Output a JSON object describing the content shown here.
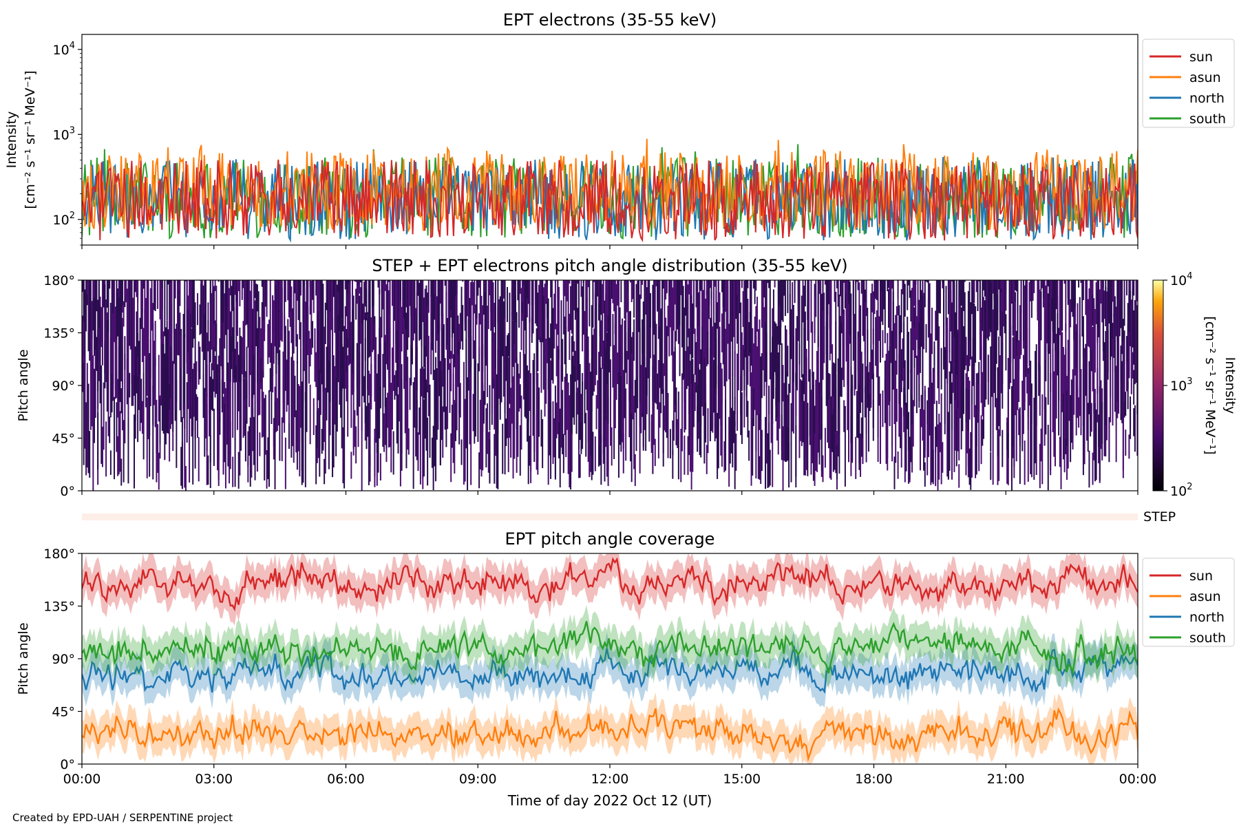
{
  "figure": {
    "credit": "Created by EPD-UAH / SERPENTINE project",
    "xlabel": "Time of day 2022 Oct 12 (UT)",
    "x_ticks": [
      "00:00",
      "03:00",
      "06:00",
      "09:00",
      "12:00",
      "15:00",
      "18:00",
      "21:00",
      "00:00"
    ],
    "step_label": "STEP"
  },
  "colors": {
    "sun": "#d62728",
    "asun": "#ff7f0e",
    "north": "#1f77b4",
    "south": "#2ca02c",
    "pad": "#3b0f6f"
  },
  "chart_data": [
    {
      "type": "line",
      "title": "EPT electrons (35-55 keV)",
      "ylabel_line1": "Intensity",
      "ylabel_line2": "[cm⁻² s⁻¹ sr⁻¹ MeV⁻¹]",
      "yscale": "log",
      "ylim": [
        50,
        15000
      ],
      "y_ticks": [
        {
          "label": "10",
          "exp": "2",
          "value": 100
        },
        {
          "label": "10",
          "exp": "3",
          "value": 1000
        },
        {
          "label": "10",
          "exp": "4",
          "value": 10000
        }
      ],
      "xlim_hours": [
        0,
        24
      ],
      "legend": "right outside",
      "series": [
        {
          "name": "sun",
          "color": "#d62728",
          "typical": 170,
          "max": 500
        },
        {
          "name": "asun",
          "color": "#ff7f0e",
          "typical": 220,
          "max": 900
        },
        {
          "name": "north",
          "color": "#1f77b4",
          "typical": 170,
          "max": 550
        },
        {
          "name": "south",
          "color": "#2ca02c",
          "typical": 180,
          "max": 800
        }
      ],
      "legend_order": [
        "sun",
        "asun",
        "north",
        "south"
      ]
    },
    {
      "type": "heatmap",
      "title": "STEP + EPT electrons pitch angle distribution (35-55 keV)",
      "ylabel": "Pitch angle",
      "ylim": [
        0,
        180
      ],
      "y_ticks": [
        "0°",
        "45°",
        "90°",
        "135°",
        "180°"
      ],
      "colorbar": {
        "label": "Intensity",
        "unit": "[cm⁻² s⁻¹ sr⁻¹ MeV⁻¹]",
        "scale": "log",
        "range": [
          100,
          10000
        ],
        "ticks": [
          {
            "label": "10",
            "exp": "2"
          },
          {
            "label": "10",
            "exp": "3"
          },
          {
            "label": "10",
            "exp": "4"
          }
        ],
        "colormap": "inferno"
      }
    },
    {
      "type": "line",
      "title": "EPT pitch angle coverage",
      "ylabel": "Pitch angle",
      "ylim": [
        0,
        180
      ],
      "y_ticks": [
        "0°",
        "45°",
        "90°",
        "135°",
        "180°"
      ],
      "xlim_hours": [
        0,
        24
      ],
      "legend": "right outside",
      "series": [
        {
          "name": "sun",
          "color": "#d62728",
          "mean_deg": 155
        },
        {
          "name": "asun",
          "color": "#ff7f0e",
          "mean_deg": 28
        },
        {
          "name": "north",
          "color": "#1f77b4",
          "mean_deg": 78
        },
        {
          "name": "south",
          "color": "#2ca02c",
          "mean_deg": 100
        }
      ],
      "legend_order": [
        "sun",
        "asun",
        "north",
        "south"
      ]
    }
  ]
}
